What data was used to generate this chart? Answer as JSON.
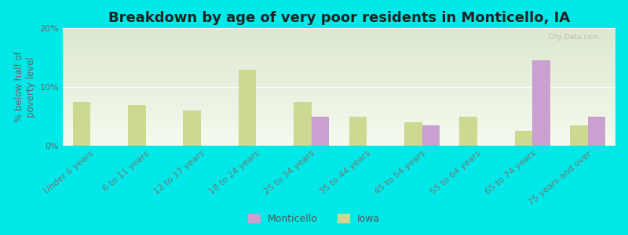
{
  "title": "Breakdown by age of very poor residents in Monticello, IA",
  "ylabel": "% below half of\npoverty level",
  "categories": [
    "Under 6 years",
    "6 to 11 years",
    "12 to 17 years",
    "18 to 24 years",
    "25 to 34 years",
    "35 to 44 years",
    "45 to 54 years",
    "55 to 64 years",
    "65 to 74 years",
    "75 years and over"
  ],
  "monticello": [
    0,
    0,
    0,
    0,
    5.0,
    0,
    3.5,
    0,
    14.5,
    5.0
  ],
  "iowa": [
    7.5,
    7.0,
    6.0,
    13.0,
    7.5,
    5.0,
    4.0,
    5.0,
    2.5,
    3.5
  ],
  "monticello_color": "#c9a0d0",
  "iowa_color": "#cdd890",
  "background_color": "#00e8e8",
  "plot_bg_top": "#dce8d0",
  "plot_bg_bottom": "#f5faee",
  "ylim": [
    0,
    20
  ],
  "yticks": [
    0,
    10,
    20
  ],
  "ytick_labels": [
    "0%",
    "10%",
    "20%"
  ],
  "bar_width": 0.32,
  "title_fontsize": 13,
  "axis_label_fontsize": 8.5,
  "tick_fontsize": 8,
  "legend_fontsize": 9,
  "watermark": "City-Data.com"
}
